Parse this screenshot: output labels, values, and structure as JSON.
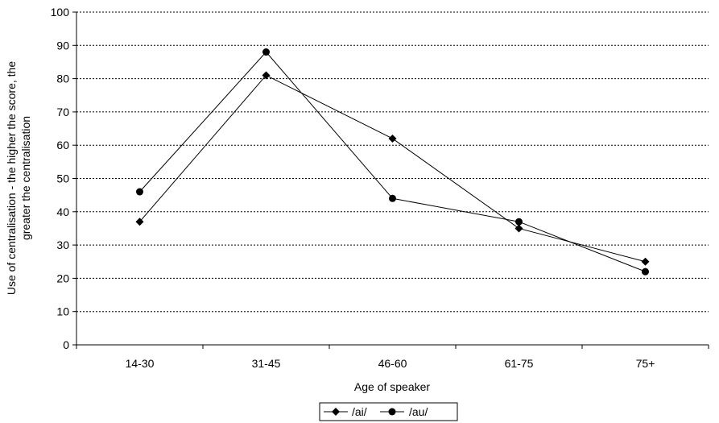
{
  "chart_data": {
    "type": "line",
    "title": "",
    "xlabel": "Age of speaker",
    "ylabel_line1": "Use of centralisation - the higher the score, the",
    "ylabel_line2": "greater the centralisation",
    "categories": [
      "14-30",
      "31-45",
      "46-60",
      "61-75",
      "75+"
    ],
    "ylim": [
      0,
      100
    ],
    "yticks": [
      0,
      10,
      20,
      30,
      40,
      50,
      60,
      70,
      80,
      90,
      100
    ],
    "grid": true,
    "grid_style": "dotted",
    "legend_position": "bottom-center",
    "series": [
      {
        "name": "/ai/",
        "marker": "diamond",
        "color": "#000000",
        "values": [
          37,
          81,
          62,
          35,
          25
        ]
      },
      {
        "name": "/au/",
        "marker": "circle",
        "color": "#000000",
        "values": [
          46,
          88,
          44,
          37,
          22
        ]
      }
    ]
  }
}
